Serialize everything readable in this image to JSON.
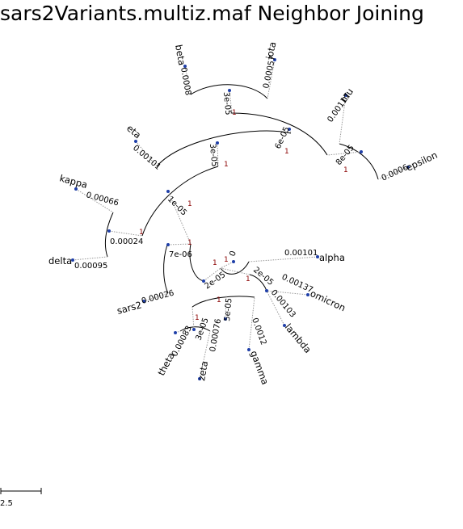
{
  "title": "sars2Variants.multiz.maf Neighbor Joining",
  "scale_bar": {
    "label": "2.5"
  },
  "leaves": [
    {
      "id": "beta",
      "label": "beta",
      "length": "0.0008"
    },
    {
      "id": "iota",
      "label": "iota",
      "length": "0.00057"
    },
    {
      "id": "mu",
      "label": "mu",
      "length": "0.00117"
    },
    {
      "id": "epsilon",
      "label": "epsilon",
      "length": "0.0006"
    },
    {
      "id": "eta",
      "label": "eta",
      "length": "0.00101"
    },
    {
      "id": "kappa",
      "label": "kappa",
      "length": "0.00066"
    },
    {
      "id": "delta",
      "label": "delta",
      "length": "0.00095"
    },
    {
      "id": "alpha",
      "label": "alpha",
      "length": "0.00101"
    },
    {
      "id": "omicron",
      "label": "omicron",
      "length": "0.00137"
    },
    {
      "id": "lambda",
      "label": "lambda",
      "length": "0.00103"
    },
    {
      "id": "gamma",
      "label": "gamma",
      "length": "0.0012"
    },
    {
      "id": "zeta",
      "label": "zeta",
      "length": "0.00076"
    },
    {
      "id": "theta",
      "label": "theta",
      "length": "0.00083"
    },
    {
      "id": "sars2",
      "label": "sars2",
      "length": "0.00026"
    }
  ],
  "internal_labels": {
    "beta_iota": "3e-05",
    "mu_epsilon": "8e-05",
    "upper_right": "6e-05",
    "eta_group": "3e-05",
    "kappa_delta": "0.00024",
    "upper_left": "1e-05",
    "sars2_node": "7e-06",
    "lower_core": "2e-05",
    "alpha_core": "0",
    "omicron_lambda": "2e-05",
    "gamma_group": "5e-05",
    "zeta_theta": "3e-05"
  },
  "bootstrap": "1"
}
